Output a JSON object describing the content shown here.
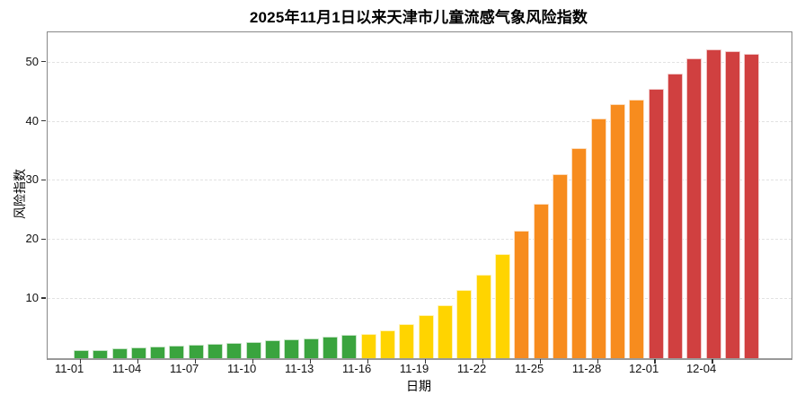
{
  "page": {
    "background": "#ffffff"
  },
  "chart_data": {
    "type": "bar",
    "title": "2025年11月1日以来天津市儿童流感气象风险指数",
    "xlabel": "日期",
    "ylabel": "风险指数",
    "categories": [
      "11-01",
      "11-02",
      "11-03",
      "11-04",
      "11-05",
      "11-06",
      "11-07",
      "11-08",
      "11-09",
      "11-10",
      "11-11",
      "11-12",
      "11-13",
      "11-14",
      "11-15",
      "11-16",
      "11-17",
      "11-18",
      "11-19",
      "11-20",
      "11-21",
      "11-22",
      "11-23",
      "11-24",
      "11-25",
      "11-26",
      "11-27",
      "11-28",
      "11-29",
      "11-30",
      "12-01",
      "12-02",
      "12-03",
      "12-04",
      "12-05",
      "12-06"
    ],
    "values": [
      1.4,
      1.4,
      1.7,
      1.9,
      2.0,
      2.1,
      2.3,
      2.5,
      2.6,
      2.8,
      3.0,
      3.2,
      3.4,
      3.7,
      3.9,
      4.1,
      4.7,
      5.8,
      7.3,
      9.0,
      11.5,
      14.2,
      17.6,
      21.5,
      26.1,
      31.1,
      35.5,
      40.5,
      42.9,
      43.7,
      45.5,
      48.1,
      50.7,
      52.2,
      51.9,
      51.4
    ],
    "bar_colors": [
      "#3aa43e",
      "#3aa43e",
      "#3aa43e",
      "#3aa43e",
      "#3aa43e",
      "#3aa43e",
      "#3aa43e",
      "#3aa43e",
      "#3aa43e",
      "#3aa43e",
      "#3aa43e",
      "#3aa43e",
      "#3aa43e",
      "#3aa43e",
      "#3aa43e",
      "#ffd400",
      "#ffd400",
      "#ffd400",
      "#ffd400",
      "#ffd400",
      "#ffd400",
      "#ffd400",
      "#ffd400",
      "#f78c1e",
      "#f78c1e",
      "#f78c1e",
      "#f78c1e",
      "#f78c1e",
      "#f78c1e",
      "#f78c1e",
      "#d04040",
      "#d04040",
      "#d04040",
      "#d04040",
      "#d04040",
      "#d04040"
    ],
    "palette": {
      "low_green": "#3aa43e",
      "medium_yellow": "#ffd400",
      "high_orange": "#f78c1e",
      "very_high_red": "#d04040"
    },
    "x_tick_labels": [
      "11-01",
      "11-04",
      "11-07",
      "11-10",
      "11-13",
      "11-16",
      "11-19",
      "11-22",
      "11-25",
      "11-28",
      "12-01",
      "12-04"
    ],
    "y_ticks": [
      10,
      20,
      30,
      40,
      50
    ],
    "ylim": [
      0,
      55.1
    ],
    "grid": {
      "horizontal": true,
      "style": "dashed",
      "color": "#e2e2e2"
    },
    "legend": "none"
  }
}
